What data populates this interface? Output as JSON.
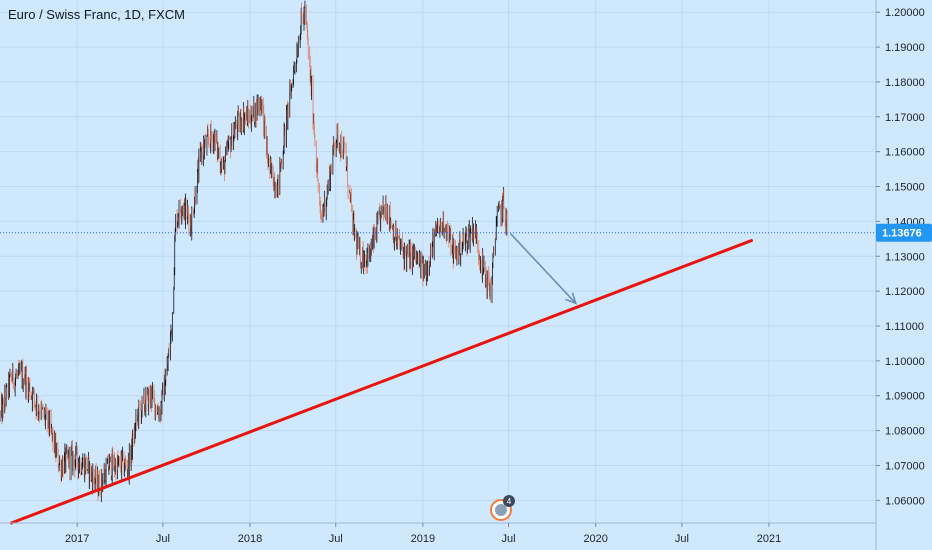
{
  "header": {
    "title": "Euro / Swiss Franc, 1D, FXCM"
  },
  "colors": {
    "background": "#cfe8fc",
    "grid": "#bcd9f3",
    "candle_up": "#131722",
    "candle_down": "#e4785a",
    "trendline": "#e8150f",
    "arrow": "#6a8fb7",
    "price_line": "#2962ff",
    "price_tag_bg": "#2196f3",
    "marker": "#f57c3a"
  },
  "chart_data": {
    "type": "candlestick",
    "symbol": "EURCHF",
    "interval": "1D",
    "current_price": 1.13676,
    "current_price_label": "1.13676",
    "y_ticks": [
      "1.20000",
      "1.19000",
      "1.18000",
      "1.17000",
      "1.16000",
      "1.15000",
      "1.14000",
      "1.13000",
      "1.12000",
      "1.11000",
      "1.10000",
      "1.09000",
      "1.08000",
      "1.07000",
      "1.06000"
    ],
    "y_tick_values": [
      1.2,
      1.19,
      1.18,
      1.17,
      1.16,
      1.15,
      1.14,
      1.13,
      1.12,
      1.11,
      1.1,
      1.09,
      1.08,
      1.07,
      1.06
    ],
    "ylim": [
      1.0535,
      1.2035
    ],
    "x_ticks": [
      "2017",
      "Jul",
      "2018",
      "Jul",
      "2019",
      "Jul",
      "2020",
      "Jul",
      "2021"
    ],
    "x_tick_dates": [
      "2017-01-01",
      "2017-07-01",
      "2018-01-01",
      "2018-07-01",
      "2019-01-01",
      "2019-07-01",
      "2020-01-01",
      "2020-07-01",
      "2021-01-01"
    ],
    "xlim": [
      "2016-07-22",
      "2021-08-15"
    ],
    "price_path": [
      [
        "2016-07-22",
        1.084
      ],
      [
        "2016-08-15",
        1.095
      ],
      [
        "2016-09-10",
        1.096
      ],
      [
        "2016-10-05",
        1.088
      ],
      [
        "2016-11-01",
        1.082
      ],
      [
        "2016-11-25",
        1.07
      ],
      [
        "2016-12-20",
        1.072
      ],
      [
        "2017-01-20",
        1.07
      ],
      [
        "2017-02-15",
        1.064
      ],
      [
        "2017-03-10",
        1.07
      ],
      [
        "2017-04-01",
        1.07
      ],
      [
        "2017-04-20",
        1.07
      ],
      [
        "2017-05-10",
        1.085
      ],
      [
        "2017-06-05",
        1.09
      ],
      [
        "2017-06-25",
        1.085
      ],
      [
        "2017-07-10",
        1.098
      ],
      [
        "2017-07-20",
        1.11
      ],
      [
        "2017-07-28",
        1.14
      ],
      [
        "2017-08-10",
        1.145
      ],
      [
        "2017-08-30",
        1.14
      ],
      [
        "2017-09-20",
        1.16
      ],
      [
        "2017-10-15",
        1.165
      ],
      [
        "2017-11-05",
        1.155
      ],
      [
        "2017-11-25",
        1.165
      ],
      [
        "2017-12-15",
        1.17
      ],
      [
        "2018-01-05",
        1.17
      ],
      [
        "2018-01-25",
        1.175
      ],
      [
        "2018-02-10",
        1.155
      ],
      [
        "2018-03-01",
        1.15
      ],
      [
        "2018-03-20",
        1.17
      ],
      [
        "2018-04-05",
        1.185
      ],
      [
        "2018-04-20",
        1.198
      ],
      [
        "2018-04-28",
        1.199
      ],
      [
        "2018-05-15",
        1.17
      ],
      [
        "2018-05-30",
        1.14
      ],
      [
        "2018-06-15",
        1.15
      ],
      [
        "2018-07-01",
        1.165
      ],
      [
        "2018-07-20",
        1.16
      ],
      [
        "2018-08-05",
        1.14
      ],
      [
        "2018-08-20",
        1.13
      ],
      [
        "2018-09-10",
        1.13
      ],
      [
        "2018-10-01",
        1.14
      ],
      [
        "2018-10-15",
        1.145
      ],
      [
        "2018-11-05",
        1.135
      ],
      [
        "2018-11-25",
        1.13
      ],
      [
        "2018-12-15",
        1.13
      ],
      [
        "2019-01-05",
        1.125
      ],
      [
        "2019-01-25",
        1.135
      ],
      [
        "2019-02-15",
        1.14
      ],
      [
        "2019-03-10",
        1.13
      ],
      [
        "2019-04-01",
        1.135
      ],
      [
        "2019-04-20",
        1.138
      ],
      [
        "2019-05-10",
        1.125
      ],
      [
        "2019-05-25",
        1.12
      ],
      [
        "2019-06-05",
        1.14
      ],
      [
        "2019-06-20",
        1.145
      ],
      [
        "2019-06-30",
        1.1368
      ]
    ],
    "annotations": [
      {
        "type": "trendline",
        "from": [
          "2016-08-15",
          1.0535
        ],
        "to": [
          "2020-11-25",
          1.1345
        ],
        "color": "#e8150f"
      },
      {
        "type": "arrow",
        "from": [
          "2019-07-05",
          1.1365
        ],
        "to": [
          "2019-11-20",
          1.1165
        ],
        "color": "#6a8fb7"
      }
    ],
    "grid": true,
    "marker": {
      "label": "4",
      "date": "2019-06-15"
    }
  }
}
